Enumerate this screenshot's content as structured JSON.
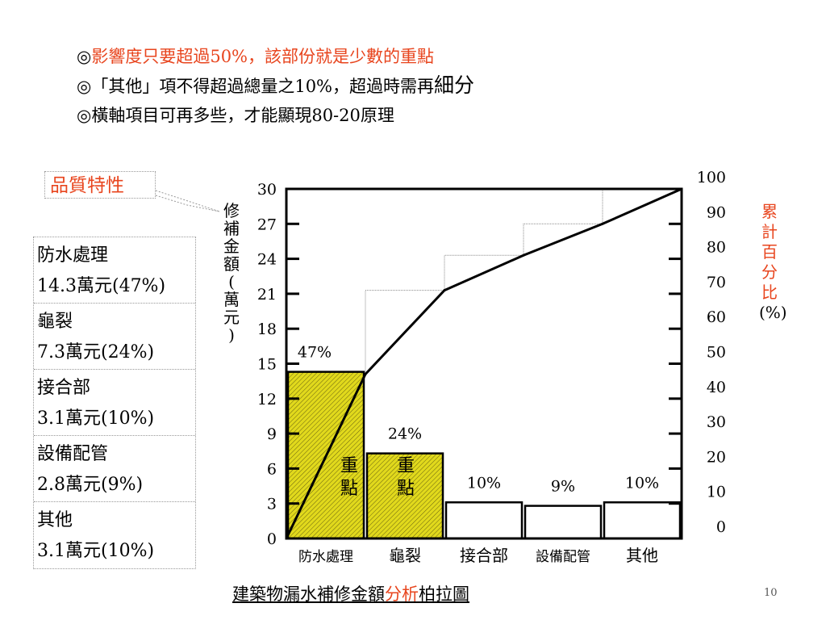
{
  "bullets": [
    {
      "mark": "◎",
      "text": "影響度只要超過50%，該部份就是少數的重點",
      "red": true
    },
    {
      "mark": "◎",
      "text": "「其他」項不得超過總量之10%，超過時需再",
      "big": "細分"
    },
    {
      "mark": "◎",
      "text": "橫軸項目可再多些，才能顯現80-20原理"
    }
  ],
  "quality_label": "品質特性",
  "legend": [
    {
      "name": "防水處理",
      "detail": "14.3萬元(47%)"
    },
    {
      "name": "龜裂",
      "detail": "7.3萬元(24%)"
    },
    {
      "name": "接合部",
      "detail": "3.1萬元(10%)"
    },
    {
      "name": "設備配管",
      "detail": "2.8萬元(9%)"
    },
    {
      "name": "其他",
      "detail": "3.1萬元(10%)"
    }
  ],
  "left_axis_label_chars": [
    "修",
    "補",
    "金",
    "額",
    "(",
    "萬",
    "元",
    ")"
  ],
  "right_axis_label_chars": [
    "累",
    "計",
    "百",
    "分",
    "比",
    "(%)"
  ],
  "emphasis_label": [
    "重",
    "點"
  ],
  "caption": {
    "pre": "建築物漏水補修金額",
    "red": "分析",
    "post": "柏拉圖"
  },
  "page_number": "10",
  "colors": {
    "accent_red": "#e8451e",
    "bar_highlight": "#e1d91c",
    "bar_plain": "#ffffff"
  },
  "chart_data": {
    "type": "bar",
    "categories": [
      "防水處理",
      "龜裂",
      "接合部",
      "設備配管",
      "其他"
    ],
    "values": [
      14.3,
      7.3,
      3.1,
      2.8,
      3.1
    ],
    "percent_labels": [
      "47%",
      "24%",
      "10%",
      "9%",
      "10%"
    ],
    "highlighted": [
      true,
      true,
      false,
      false,
      false
    ],
    "cumulative_percent": [
      0,
      47,
      71,
      81,
      90,
      100
    ],
    "left_axis": {
      "ylim": [
        0,
        30
      ],
      "ticks": [
        0,
        3,
        6,
        9,
        12,
        15,
        18,
        21,
        24,
        27,
        30
      ]
    },
    "right_axis": {
      "ylim": [
        0,
        100
      ],
      "ticks": [
        0,
        10,
        20,
        30,
        40,
        50,
        60,
        70,
        80,
        90,
        100
      ]
    }
  }
}
